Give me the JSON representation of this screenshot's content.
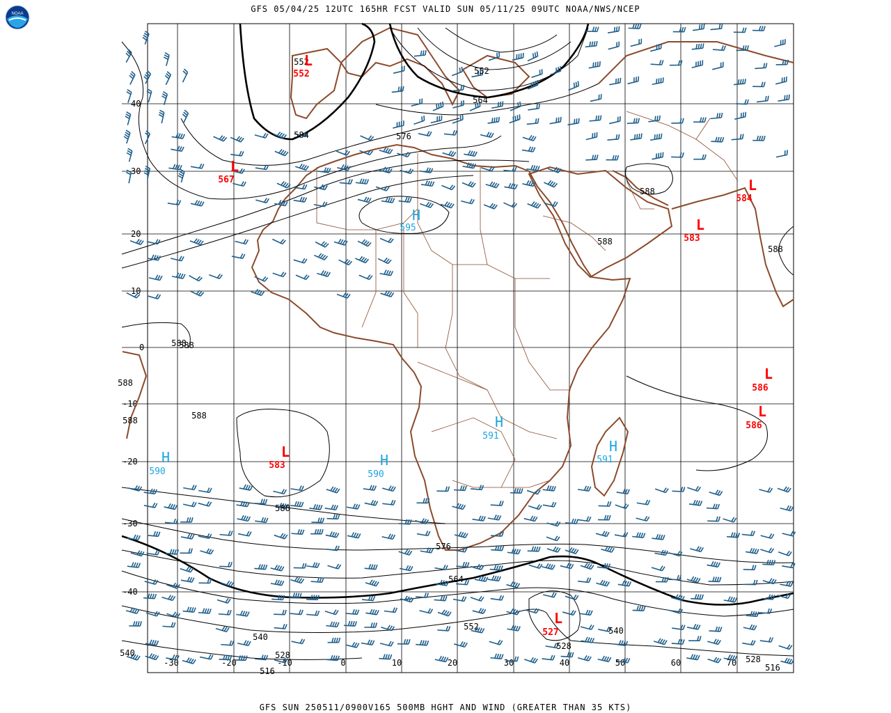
{
  "header": {
    "title": "GFS 05/04/25 12UTC 165HR FCST VALID SUN 05/11/25 09UTC NOAA/NWS/NCEP"
  },
  "footer": {
    "caption": "GFS SUN 250511/0900V165 500MB HGHT AND WIND (GREATER THAN 35 KTS)"
  },
  "logo": {
    "text": "NOAA"
  },
  "colors": {
    "land": "#8b4a2b",
    "grid": "#000000",
    "barbs": "#1f5f8b",
    "low": "#ff0000",
    "high": "#1aa6e0",
    "contour": "#000000"
  },
  "lat_labels": [
    "40",
    "30",
    "20",
    "10",
    "0",
    "-10",
    "-20",
    "-30",
    "-40"
  ],
  "lon_labels": [
    "-30",
    "-20",
    "-10",
    "0",
    "10",
    "20",
    "30",
    "40",
    "50",
    "60",
    "70"
  ],
  "lows": [
    {
      "letter": "L",
      "value": "552"
    },
    {
      "letter": "L",
      "value": "567"
    },
    {
      "letter": "L",
      "value": "584"
    },
    {
      "letter": "L",
      "value": "583"
    },
    {
      "letter": "L",
      "value": "586"
    },
    {
      "letter": "L",
      "value": "586"
    },
    {
      "letter": "L",
      "value": "583"
    },
    {
      "letter": "L",
      "value": "527"
    }
  ],
  "highs": [
    {
      "letter": "H",
      "value": "595"
    },
    {
      "letter": "H",
      "value": "591"
    },
    {
      "letter": "H",
      "value": "591"
    },
    {
      "letter": "H",
      "value": "590"
    },
    {
      "letter": "H",
      "value": "590"
    }
  ],
  "contour_labels": [
    "552",
    "584",
    "576",
    "552",
    "564",
    "588",
    "588",
    "588",
    "588",
    "588",
    "588",
    "588",
    "588",
    "588",
    "576",
    "564",
    "552",
    "540",
    "528",
    "516",
    "540",
    "528",
    "528",
    "516",
    "540"
  ]
}
